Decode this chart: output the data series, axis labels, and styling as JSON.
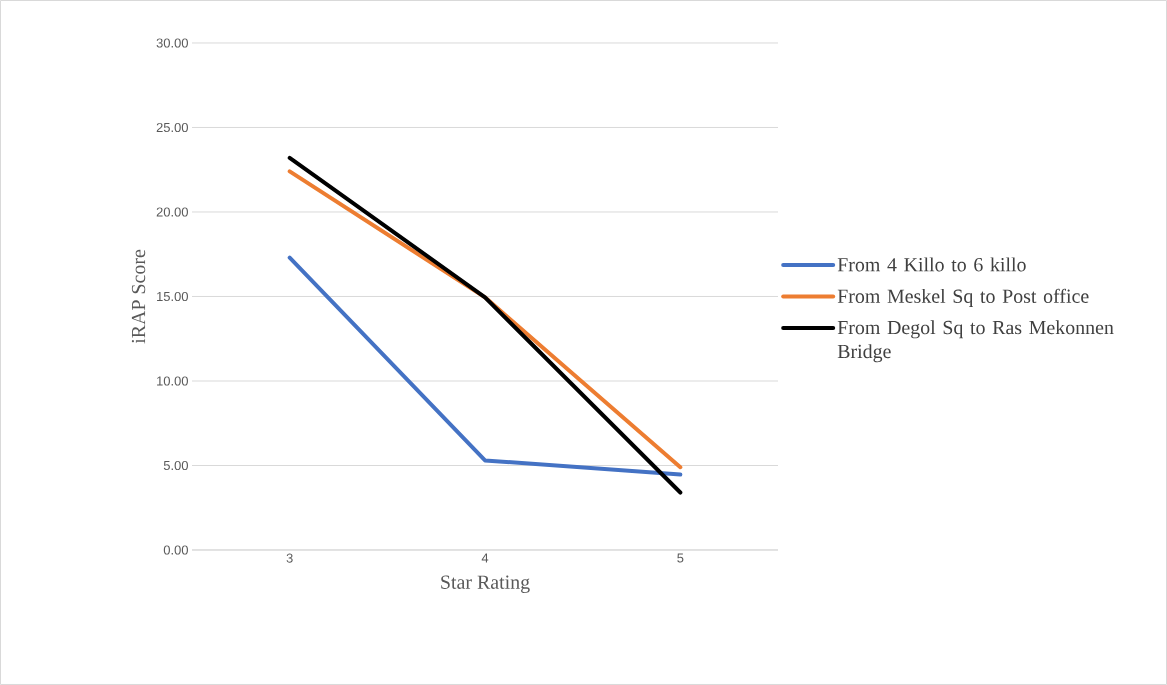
{
  "chart_data": {
    "type": "line",
    "xlabel": "Star Rating",
    "ylabel": "iRAP Score",
    "categories": [
      "3",
      "4",
      "5"
    ],
    "series": [
      {
        "name": "From 4 Killo to 6 killo",
        "color": "#4472c4",
        "values": [
          17.3,
          5.3,
          4.46
        ]
      },
      {
        "name": "From Meskel Sq to Post office",
        "color": "#ed7d31",
        "values": [
          22.4,
          14.95,
          4.9
        ]
      },
      {
        "name": "From Degol Sq to Ras Mekonnen Bridge",
        "color": "#000000",
        "values": [
          23.2,
          14.95,
          3.4
        ]
      }
    ],
    "ylim": [
      0,
      30
    ],
    "yticks": [
      {
        "value": 0,
        "label": "0.00"
      },
      {
        "value": 5,
        "label": "5.00"
      },
      {
        "value": 10,
        "label": "10.00"
      },
      {
        "value": 15,
        "label": "15.00"
      },
      {
        "value": 20,
        "label": "20.00"
      },
      {
        "value": 25,
        "label": "25.00"
      },
      {
        "value": 30,
        "label": "30.00"
      }
    ],
    "grid": "y",
    "legend": "right",
    "marker": "none",
    "line_style": "solid"
  }
}
